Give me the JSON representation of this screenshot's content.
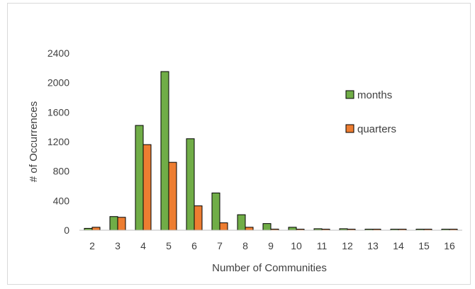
{
  "chart_data": {
    "type": "bar",
    "title": "",
    "xlabel": "Number of Communities",
    "ylabel": "# of Occurrences",
    "categories": [
      "2",
      "3",
      "4",
      "5",
      "6",
      "7",
      "8",
      "9",
      "10",
      "11",
      "12",
      "13",
      "14",
      "15",
      "16"
    ],
    "ylim": [
      0,
      2400
    ],
    "yticks": [
      0,
      400,
      800,
      1200,
      1600,
      2000,
      2400
    ],
    "ytick_labels": [
      "0",
      "400",
      "800",
      "1200",
      "1600",
      "2000",
      "2400"
    ],
    "grid": false,
    "legend_position": "right",
    "series": [
      {
        "name": "months",
        "color": "#70ad47",
        "values": [
          25,
          185,
          1420,
          2150,
          1240,
          505,
          210,
          90,
          40,
          20,
          20,
          8,
          5,
          3,
          2
        ]
      },
      {
        "name": "quarters",
        "color": "#ed7d31",
        "values": [
          40,
          175,
          1160,
          920,
          330,
          100,
          40,
          15,
          8,
          5,
          5,
          2,
          1,
          0,
          0
        ]
      }
    ]
  }
}
